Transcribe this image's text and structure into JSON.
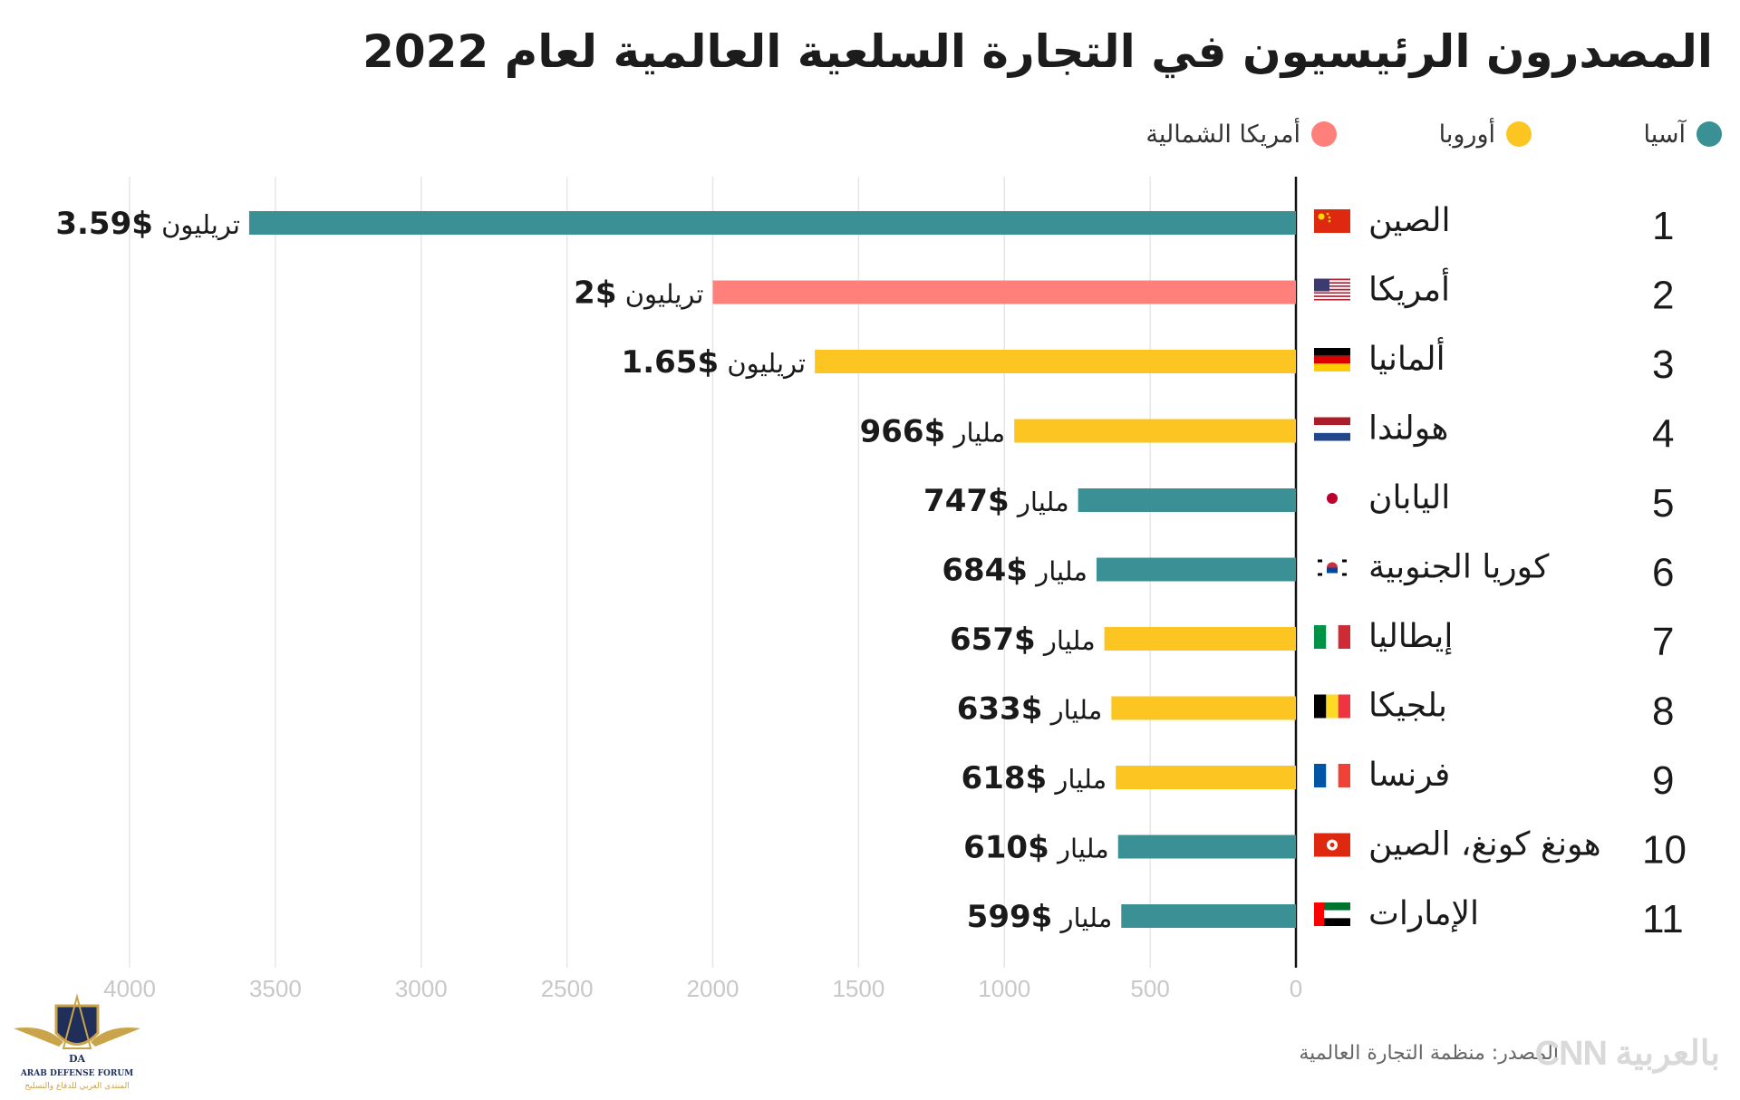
{
  "title": "المصدرون الرئيسيون في التجارة السلعية العالمية لعام 2022",
  "legend": [
    {
      "label": "آسيا",
      "color": "#3a9095"
    },
    {
      "label": "أوروبا",
      "color": "#fcc521"
    },
    {
      "label": "أمريكا الشمالية",
      "color": "#ff7f7a"
    }
  ],
  "source": "المصدر: منظمة التجارة العالمية",
  "cnn_logo_text": "CNN بالعربية",
  "watermark": {
    "line1": "ARAB DEFENSE FORUM",
    "line2": "المنتدى العربي للدفاع والتسليح",
    "initials": "DA"
  },
  "chart_data": {
    "type": "bar",
    "orientation": "horizontal",
    "x_axis_direction": "right-to-left",
    "title": "المصدرون الرئيسيون في التجارة السلعية العالمية لعام 2022",
    "xlim": [
      0,
      4000
    ],
    "x_ticks": [
      0,
      500,
      1000,
      1500,
      2000,
      2500,
      3000,
      3500,
      4000
    ],
    "grid": "vertical",
    "legend_position": "top-right",
    "categories": [
      {
        "rank": "1",
        "country": "الصين",
        "value": 3590,
        "amount": "$3.59",
        "unit": "تريليون",
        "region": "آسيا"
      },
      {
        "rank": "2",
        "country": "أمريكا",
        "value": 2000,
        "amount": "$2",
        "unit": "تريليون",
        "region": "أمريكا الشمالية"
      },
      {
        "rank": "3",
        "country": "ألمانيا",
        "value": 1650,
        "amount": "$1.65",
        "unit": "تريليون",
        "region": "أوروبا"
      },
      {
        "rank": "4",
        "country": "هولندا",
        "value": 966,
        "amount": "$966",
        "unit": "مليار",
        "region": "أوروبا"
      },
      {
        "rank": "5",
        "country": "اليابان",
        "value": 747,
        "amount": "$747",
        "unit": "مليار",
        "region": "آسيا"
      },
      {
        "rank": "6",
        "country": "كوريا الجنوبية",
        "value": 684,
        "amount": "$684",
        "unit": "مليار",
        "region": "آسيا"
      },
      {
        "rank": "7",
        "country": "إيطاليا",
        "value": 657,
        "amount": "$657",
        "unit": "مليار",
        "region": "أوروبا"
      },
      {
        "rank": "8",
        "country": "بلجيكا",
        "value": 633,
        "amount": "$633",
        "unit": "مليار",
        "region": "أوروبا"
      },
      {
        "rank": "9",
        "country": "فرنسا",
        "value": 618,
        "amount": "$618",
        "unit": "مليار",
        "region": "أوروبا"
      },
      {
        "rank": "10",
        "country": "هونغ كونغ، الصين",
        "value": 610,
        "amount": "$610",
        "unit": "مليار",
        "region": "آسيا"
      },
      {
        "rank": "11",
        "country": "الإمارات",
        "value": 599,
        "amount": "$599",
        "unit": "مليار",
        "region": "آسيا"
      }
    ],
    "flags": [
      "china-flag-icon",
      "usa-flag-icon",
      "germany-flag-icon",
      "netherlands-flag-icon",
      "japan-flag-icon",
      "south-korea-flag-icon",
      "italy-flag-icon",
      "belgium-flag-icon",
      "france-flag-icon",
      "hong-kong-flag-icon",
      "uae-flag-icon"
    ]
  }
}
